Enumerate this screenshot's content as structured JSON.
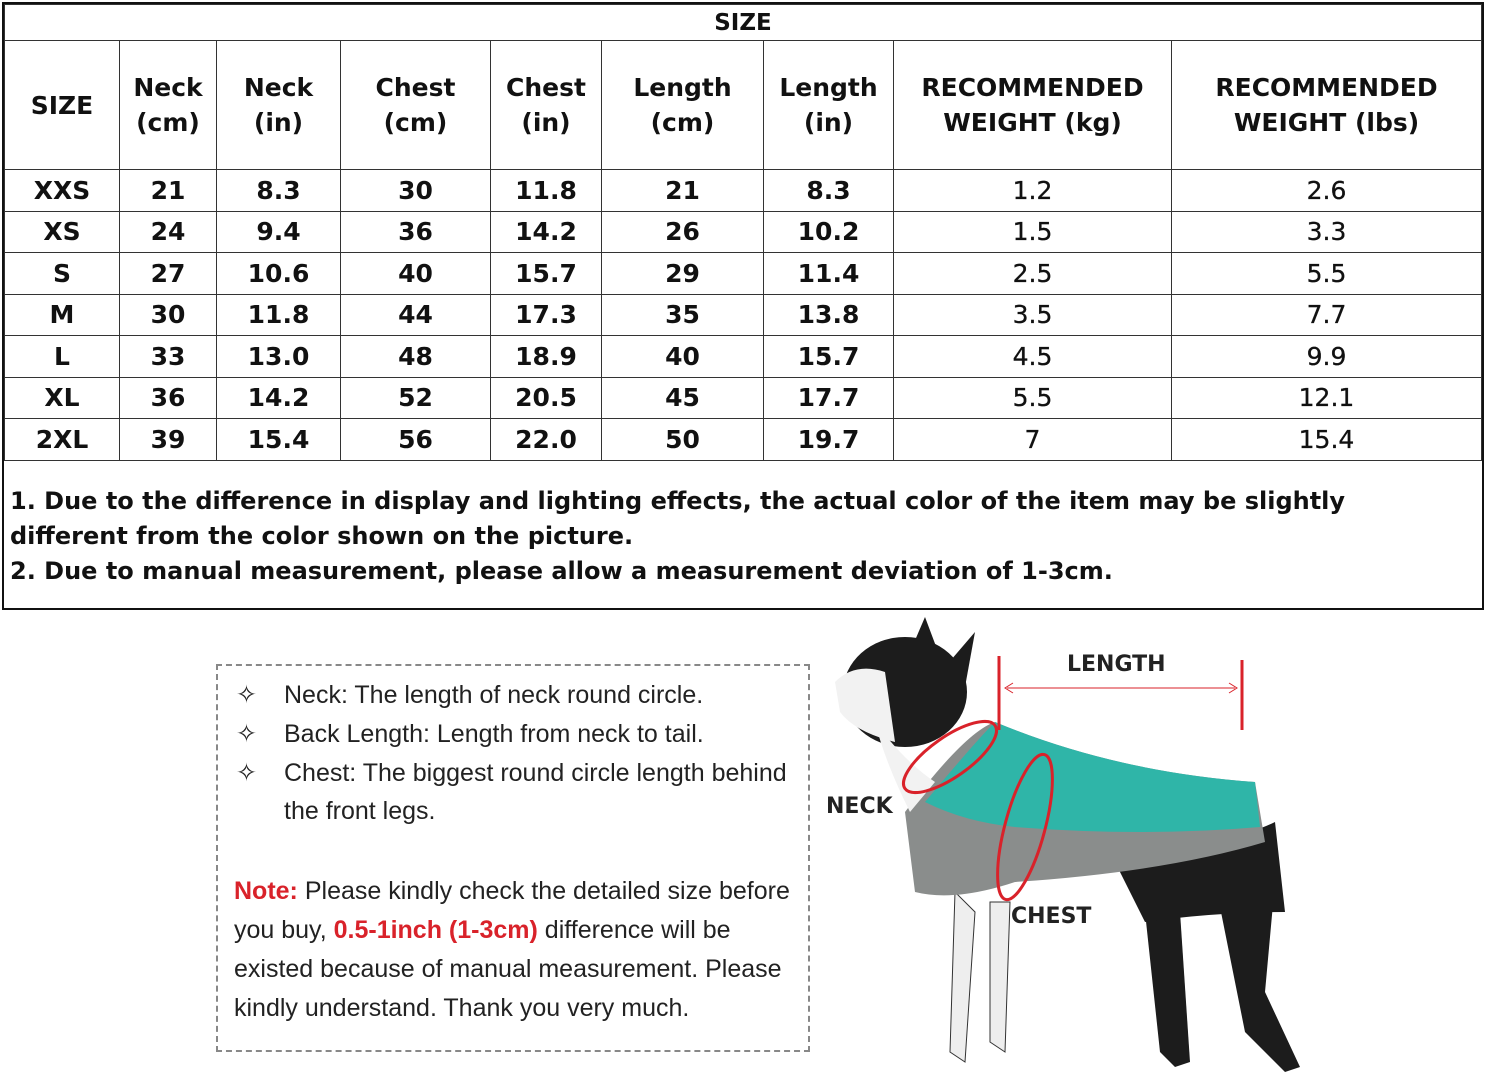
{
  "table": {
    "title": "SIZE",
    "headers": [
      [
        "SIZE",
        ""
      ],
      [
        "Neck",
        "(cm)"
      ],
      [
        "Neck",
        "(in)"
      ],
      [
        "Chest",
        "(cm)"
      ],
      [
        "Chest",
        "(in)"
      ],
      [
        "Length",
        "(cm)"
      ],
      [
        "Length",
        "(in)"
      ],
      [
        "RECOMMENDED",
        "WEIGHT (kg)"
      ],
      [
        "RECOMMENDED",
        "WEIGHT (lbs)"
      ]
    ],
    "rows": [
      [
        "XXS",
        "21",
        "8.3",
        "30",
        "11.8",
        "21",
        "8.3",
        "1.2",
        "2.6"
      ],
      [
        "XS",
        "24",
        "9.4",
        "36",
        "14.2",
        "26",
        "10.2",
        "1.5",
        "3.3"
      ],
      [
        "S",
        "27",
        "10.6",
        "40",
        "15.7",
        "29",
        "11.4",
        "2.5",
        "5.5"
      ],
      [
        "M",
        "30",
        "11.8",
        "44",
        "17.3",
        "35",
        "13.8",
        "3.5",
        "7.7"
      ],
      [
        "L",
        "33",
        "13.0",
        "48",
        "18.9",
        "40",
        "15.7",
        "4.5",
        "9.9"
      ],
      [
        "XL",
        "36",
        "14.2",
        "52",
        "20.5",
        "45",
        "17.7",
        "5.5",
        "12.1"
      ],
      [
        "2XL",
        "39",
        "15.4",
        "56",
        "22.0",
        "50",
        "19.7",
        "7",
        "15.4"
      ]
    ]
  },
  "notes": [
    "1. Due to the difference in display and lighting effects, the actual color of the item may be slightly different from the color shown on the picture.",
    "2. Due to manual measurement, please allow a measurement deviation of 1-3cm."
  ],
  "info": {
    "bullets": [
      "Neck: The length of neck round circle.",
      "Back Length: Length from neck to tail.",
      "Chest: The biggest round circle length behind the front legs."
    ],
    "bullet_icon": "four-point-star-outline-icon",
    "note_label": "Note:",
    "note_part1": " Please kindly check the detailed size before you buy, ",
    "note_highlight": "0.5-1inch (1-3cm)",
    "note_part2": " difference will be existed because of manual measurement. Please kindly understand. Thank you very much."
  },
  "diagram": {
    "length": "LENGTH",
    "neck": "NECK",
    "chest": "CHEST"
  },
  "colors": {
    "accent_red": "#d9222a",
    "coat_teal": "#2fb5a8",
    "coat_gray": "#8a8d8c"
  }
}
